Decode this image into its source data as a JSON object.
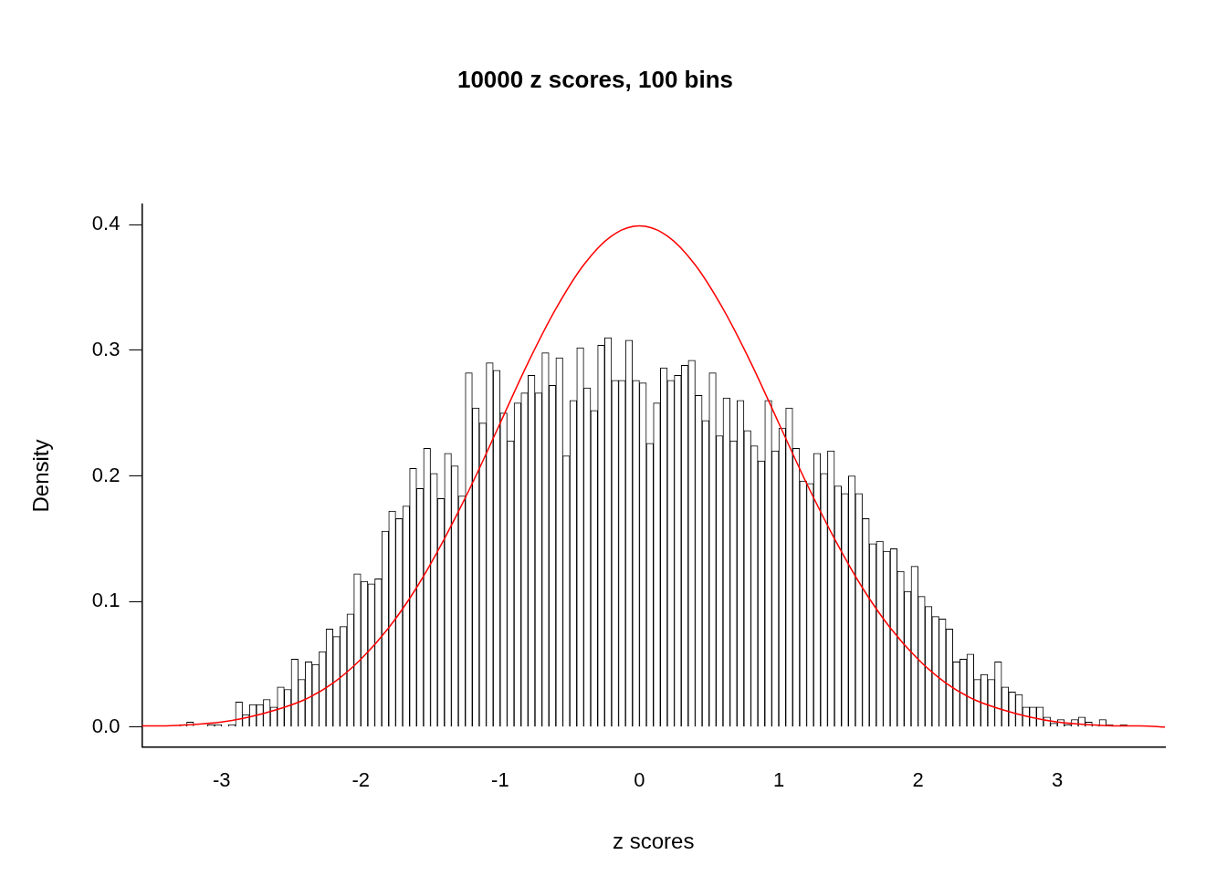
{
  "chart_data": {
    "type": "histogram",
    "title": "10000 z scores, 100 bins",
    "xlabel": "z scores",
    "ylabel": "Density",
    "bins": [
      -3.3,
      -3.25,
      -3.2,
      -3.15,
      -3.1,
      -3.05,
      -3,
      -2.95,
      -2.9,
      -2.85,
      -2.8,
      -2.75,
      -2.7,
      -2.65,
      -2.6,
      -2.55,
      -2.5,
      -2.45,
      -2.4,
      -2.35,
      -2.3,
      -2.25,
      -2.2,
      -2.15,
      -2.1,
      -2.05,
      -2,
      -1.95,
      -1.9,
      -1.85,
      -1.8,
      -1.75,
      -1.7,
      -1.65,
      -1.6,
      -1.55,
      -1.5,
      -1.45,
      -1.4,
      -1.35,
      -1.3,
      -1.25,
      -1.2,
      -1.15,
      -1.1,
      -1.05,
      -1,
      -0.95,
      -0.9,
      -0.85,
      -0.8,
      -0.75,
      -0.7,
      -0.65,
      -0.6,
      -0.55,
      -0.5,
      -0.45,
      -0.4,
      -0.35,
      -0.3,
      -0.25,
      -0.2,
      -0.15,
      -0.1,
      -0.05,
      0,
      0.05,
      0.1,
      0.15,
      0.2,
      0.25,
      0.3,
      0.35,
      0.4,
      0.45,
      0.5,
      0.55,
      0.6,
      0.65,
      0.7,
      0.75,
      0.8,
      0.85,
      0.9,
      0.95,
      1,
      1.05,
      1.1,
      1.15,
      1.2,
      1.25,
      1.3,
      1.35,
      1.4,
      1.45,
      1.5,
      1.55,
      1.6,
      1.65,
      1.7,
      1.75,
      1.8,
      1.85,
      1.9,
      1.95,
      2,
      2.05,
      2.1,
      2.15,
      2.2,
      2.25,
      2.3,
      2.35,
      2.4,
      2.45,
      2.5,
      2.55,
      2.6,
      2.65,
      2.7,
      2.75,
      2.8,
      2.85,
      2.9,
      2.95,
      3,
      3.05,
      3.1,
      3.15,
      3.2,
      3.25,
      3.3,
      3.35,
      3.4,
      3.45,
      3.5
    ],
    "values": [
      0.002,
      0.004,
      0,
      0,
      0.002,
      0.002,
      0,
      0.002,
      0.02,
      0.01,
      0.018,
      0.018,
      0.022,
      0.016,
      0.032,
      0.03,
      0.054,
      0.038,
      0.052,
      0.05,
      0.06,
      0.078,
      0.072,
      0.08,
      0.09,
      0.122,
      0.116,
      0.114,
      0.118,
      0.156,
      0.172,
      0.166,
      0.176,
      0.206,
      0.19,
      0.222,
      0.202,
      0.182,
      0.218,
      0.208,
      0.184,
      0.282,
      0.254,
      0.242,
      0.29,
      0.284,
      0.25,
      0.228,
      0.258,
      0.266,
      0.28,
      0.266,
      0.298,
      0.272,
      0.294,
      0.216,
      0.26,
      0.302,
      0.27,
      0.252,
      0.304,
      0.31,
      0.276,
      0.276,
      0.308,
      0.276,
      0.274,
      0.226,
      0.258,
      0.286,
      0.276,
      0.28,
      0.288,
      0.292,
      0.264,
      0.244,
      0.282,
      0.232,
      0.262,
      0.228,
      0.26,
      0.236,
      0.224,
      0.212,
      0.26,
      0.22,
      0.238,
      0.254,
      0.222,
      0.196,
      0.194,
      0.218,
      0.202,
      0.22,
      0.192,
      0.186,
      0.2,
      0.186,
      0.166,
      0.146,
      0.148,
      0.14,
      0.142,
      0.124,
      0.108,
      0.128,
      0.104,
      0.096,
      0.088,
      0.086,
      0.078,
      0.052,
      0.054,
      0.058,
      0.038,
      0.042,
      0.038,
      0.052,
      0.032,
      0.028,
      0.026,
      0.016,
      0.016,
      0.016,
      0.008,
      0.003,
      0.006,
      0.002,
      0.006,
      0.008,
      0.004,
      0.002,
      0.006,
      0.002,
      0,
      0.002
    ],
    "color": "#ffffff",
    "series": [
      {
        "type": "line",
        "color": "#ff0000",
        "x": [
          -3.572,
          -3.4,
          -3.2,
          -3,
          -2.8,
          -2.6,
          -2.4,
          -2.2,
          -2,
          -1.8,
          -1.6,
          -1.4,
          -1.2,
          -1,
          -0.8,
          -0.6,
          -0.4,
          -0.2,
          0,
          0.2,
          0.4,
          0.6,
          0.8,
          1,
          1.2,
          1.4,
          1.6,
          1.8,
          2,
          2.2,
          2.4,
          2.6,
          2.8,
          3,
          3.2,
          3.4,
          3.6,
          3.772
        ],
        "values": [
          0.001,
          0.001,
          0.002,
          0.004,
          0.008,
          0.014,
          0.022,
          0.035,
          0.054,
          0.079,
          0.111,
          0.15,
          0.194,
          0.242,
          0.29,
          0.333,
          0.368,
          0.391,
          0.399,
          0.391,
          0.368,
          0.333,
          0.29,
          0.242,
          0.194,
          0.15,
          0.111,
          0.079,
          0.054,
          0.035,
          0.022,
          0.014,
          0.008,
          0.004,
          0.002,
          0.001,
          0.001,
          0.0
        ]
      }
    ],
    "xlim": [
      -3.572,
      3.772
    ],
    "xticks": [
      -3,
      -2,
      -1,
      0,
      1,
      2,
      3
    ],
    "ylim": [
      -0.016,
      0.416
    ],
    "yticks": [
      {
        "value": 0,
        "label": "0.0"
      },
      {
        "value": 0.1,
        "label": "0.1"
      },
      {
        "value": 0.2,
        "label": "0.2"
      },
      {
        "value": 0.3,
        "label": "0.3"
      },
      {
        "value": 0.4,
        "label": "0.4"
      }
    ],
    "grid": false,
    "legend": false,
    "marker": "none"
  }
}
